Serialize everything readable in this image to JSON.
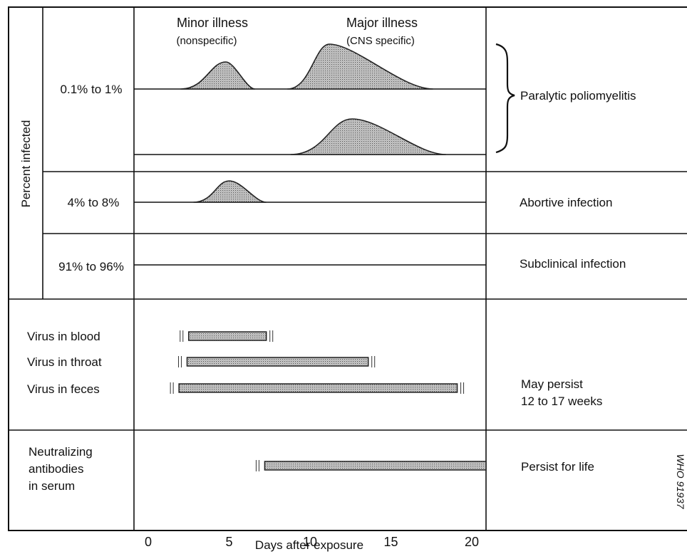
{
  "header": {
    "minor_title": "Minor illness",
    "minor_sub": "(nonspecific)",
    "major_title": "Major illness",
    "major_sub": "(CNS specific)"
  },
  "y_axis_label": "Percent infected",
  "rows": [
    {
      "percent": "0.1% to 1%",
      "outcome": "Paralytic poliomyelitis"
    },
    {
      "percent": "4% to 8%",
      "outcome": "Abortive infection"
    },
    {
      "percent": "91% to 96%",
      "outcome": "Subclinical infection"
    }
  ],
  "virus": {
    "blood": {
      "label": "Virus in blood",
      "start": 2.5,
      "end": 7.3
    },
    "throat": {
      "label": "Virus in throat",
      "start": 2.4,
      "end": 13.6
    },
    "feces": {
      "label": "Virus in feces",
      "start": 1.9,
      "end": 19.1
    },
    "note_line1": "May persist",
    "note_line2": "12 to 17 weeks"
  },
  "antibodies": {
    "line1": "Neutralizing",
    "line2": "antibodies",
    "line3": "in serum",
    "start": 7.2,
    "end": 21,
    "note": "Persist for life"
  },
  "curves": {
    "minor_row1": {
      "peak_day": 4.8,
      "start_day": 2,
      "end_day": 6.6
    },
    "major_row1": {
      "peak_day": 11.2,
      "start_day": 8.6,
      "end_day": 17.6
    },
    "major_row2": {
      "peak_day": 12.6,
      "start_day": 8.8,
      "end_day": 18.4
    },
    "minor_row3": {
      "peak_day": 5,
      "start_day": 2.8,
      "end_day": 7.3
    }
  },
  "x_axis": {
    "ticks": [
      "0",
      "5",
      "10",
      "15",
      "20"
    ],
    "label": "Days after exposure"
  },
  "watermark": "WHO 91937"
}
